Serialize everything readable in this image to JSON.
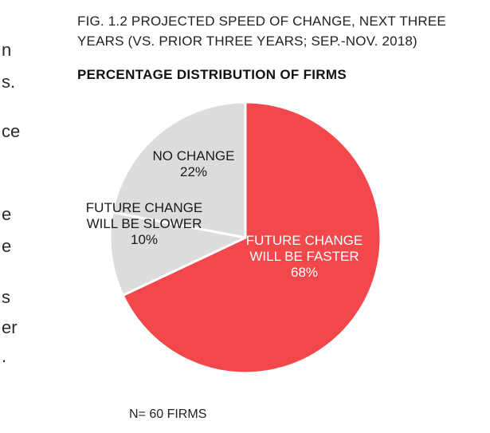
{
  "left_fragments": [
    "n",
    "s.",
    "ce",
    "e",
    "e",
    "s",
    "er",
    "."
  ],
  "title_lines": [
    "FIG. 1.2 PROJECTED SPEED OF CHANGE, NEXT THREE",
    "YEARS (VS. PRIOR THREE YEARS; SEP.-NOV. 2018)"
  ],
  "subtitle": "PERCENTAGE DISTRIBUTION OF FIRMS",
  "footnote": "N= 60 FIRMS",
  "colors": {
    "faster": "#f2474b",
    "slower": "#dcdcdc",
    "no_change": "#dcdcdc",
    "separator": "#ffffff"
  },
  "chart_data": {
    "type": "pie",
    "slices": [
      {
        "label_lines": [
          "FUTURE CHANGE",
          "WILL BE FASTER"
        ],
        "value": 68,
        "value_label": "68%",
        "color": "#f2474b"
      },
      {
        "label_lines": [
          "FUTURE CHANGE",
          "WILL BE SLOWER"
        ],
        "value": 10,
        "value_label": "10%",
        "color": "#dcdcdc"
      },
      {
        "label_lines": [
          "NO CHANGE"
        ],
        "value": 22,
        "value_label": "22%",
        "color": "#dcdcdc"
      }
    ],
    "start_angle_deg": 0,
    "direction": "clockwise"
  }
}
